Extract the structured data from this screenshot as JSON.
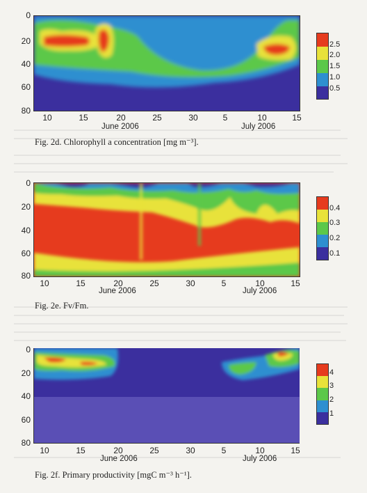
{
  "panels": [
    {
      "caption": "Fig. 2d. Chlorophyll a concentration [mg m⁻³].",
      "y_ticks": [
        "0",
        "20",
        "40",
        "60",
        "80"
      ],
      "x_ticks": [
        "10",
        "15",
        "20",
        "25",
        "30",
        "5",
        "10",
        "15"
      ],
      "month_labels": [
        "June 2006",
        "July 2006"
      ],
      "colorbar_ticks": [
        "2.5",
        "2.0",
        "1.5",
        "1.0",
        "0.5"
      ]
    },
    {
      "caption": "Fig. 2e. Fv/Fm.",
      "y_ticks": [
        "0",
        "20",
        "40",
        "60",
        "80"
      ],
      "x_ticks": [
        "10",
        "15",
        "20",
        "25",
        "30",
        "5",
        "10",
        "15"
      ],
      "month_labels": [
        "June 2006",
        "July 2006"
      ],
      "colorbar_ticks": [
        "0.4",
        "0.3",
        "0.2",
        "0.1"
      ]
    },
    {
      "caption": "Fig. 2f. Primary productivity [mgC m⁻³ h⁻¹].",
      "y_ticks": [
        "0",
        "20",
        "40",
        "60",
        "80"
      ],
      "x_ticks": [
        "10",
        "15",
        "20",
        "25",
        "30",
        "5",
        "10",
        "15"
      ],
      "month_labels": [
        "June 2006",
        "July 2006"
      ],
      "colorbar_ticks": [
        "4",
        "3",
        "2",
        "1"
      ]
    }
  ],
  "colors": {
    "low": "#3b2f9e",
    "mid_low": "#2e8fd0",
    "mid": "#5cc84a",
    "mid_high": "#e8e23a",
    "high": "#e63b1e"
  }
}
